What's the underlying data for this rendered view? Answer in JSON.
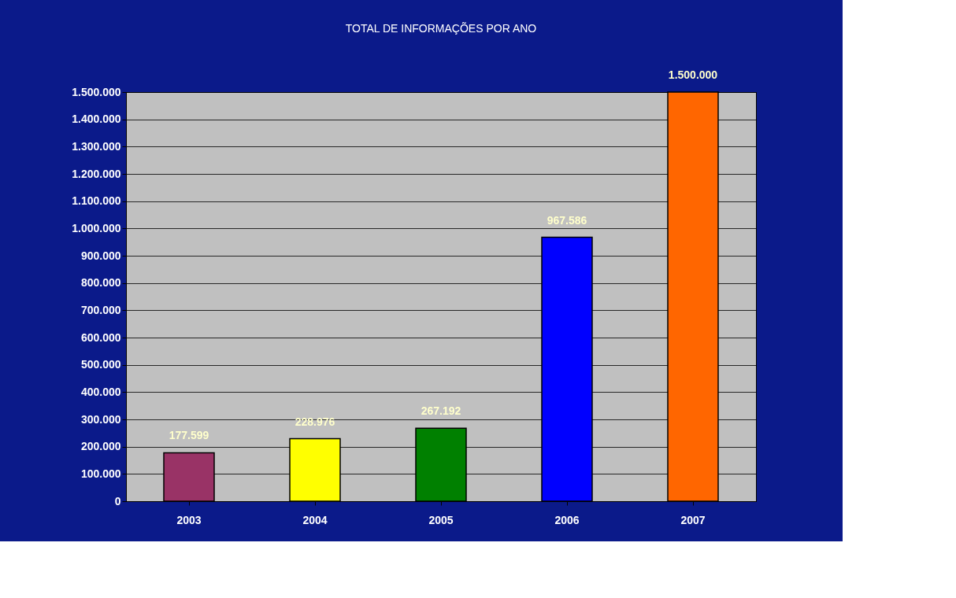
{
  "chart_data": {
    "type": "bar",
    "title": "TOTAL DE INFORMAÇÕES POR ANO",
    "categories": [
      "2003",
      "2004",
      "2005",
      "2006",
      "2007"
    ],
    "values": [
      177599,
      228976,
      267192,
      967586,
      1500000
    ],
    "value_labels": [
      "177.599",
      "228.976",
      "267.192",
      "967.586",
      "1.500.000"
    ],
    "colors": [
      "#993366",
      "#ffff00",
      "#008000",
      "#0000ff",
      "#ff6600"
    ],
    "ylim": [
      0,
      1500000
    ],
    "yticks": [
      0,
      {
        "value": 100000,
        "label": "100.000"
      },
      {
        "value": 200000,
        "label": "200.000"
      },
      {
        "value": 300000,
        "label": "300.000"
      },
      {
        "value": 400000,
        "label": "400.000"
      },
      {
        "value": 500000,
        "label": "500.000"
      },
      {
        "value": 600000,
        "label": "600.000"
      },
      {
        "value": 700000,
        "label": "700.000"
      },
      {
        "value": 800000,
        "label": "800.000"
      },
      {
        "value": 900000,
        "label": "900.000"
      },
      {
        "value": 1000000,
        "label": "1.000.000"
      },
      {
        "value": 1100000,
        "label": "1.100.000"
      },
      {
        "value": 1200000,
        "label": "1.200.000"
      },
      {
        "value": 1300000,
        "label": "1.300.000"
      },
      {
        "value": 1400000,
        "label": "1.400.000"
      },
      {
        "value": 1500000,
        "label": "1.500.000"
      }
    ],
    "grid": "y",
    "legend": false
  }
}
